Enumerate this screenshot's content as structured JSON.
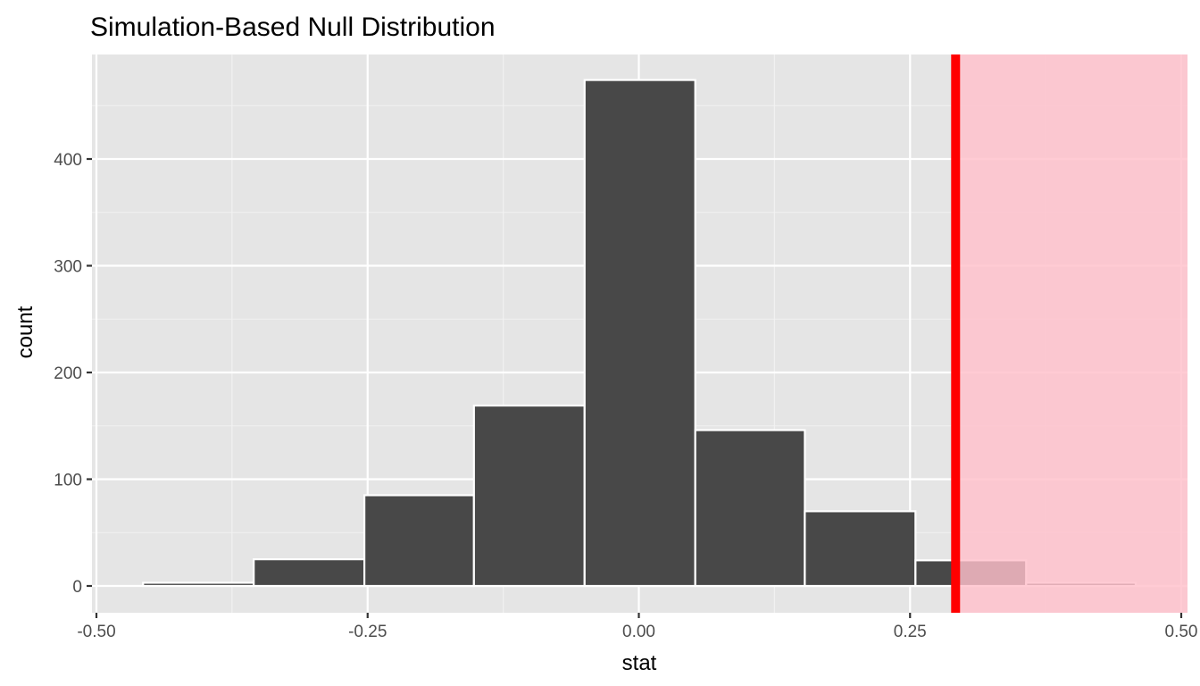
{
  "chart_data": {
    "type": "bar",
    "title": "Simulation-Based Null Distribution",
    "xlabel": "stat",
    "ylabel": "count",
    "xlim": [
      -0.5,
      0.5
    ],
    "ylim": [
      0,
      480
    ],
    "grid": true,
    "background": "#e5e5e5",
    "bar_color": "#484848",
    "bar_edge_color": "#ffffff",
    "x_ticks": [
      {
        "value": -0.5,
        "label": "-0.50"
      },
      {
        "value": -0.25,
        "label": "-0.25"
      },
      {
        "value": 0.0,
        "label": "0.00"
      },
      {
        "value": 0.25,
        "label": "0.25"
      },
      {
        "value": 0.5,
        "label": "0.50"
      }
    ],
    "y_ticks": [
      {
        "value": 0,
        "label": "0"
      },
      {
        "value": 100,
        "label": "100"
      },
      {
        "value": 200,
        "label": "200"
      },
      {
        "value": 300,
        "label": "300"
      },
      {
        "value": 400,
        "label": "400"
      }
    ],
    "bins": [
      {
        "x0": -0.457,
        "x1": -0.355,
        "count": 3
      },
      {
        "x0": -0.355,
        "x1": -0.253,
        "count": 25
      },
      {
        "x0": -0.253,
        "x1": -0.152,
        "count": 85
      },
      {
        "x0": -0.152,
        "x1": -0.05,
        "count": 169
      },
      {
        "x0": -0.05,
        "x1": 0.052,
        "count": 474
      },
      {
        "x0": 0.052,
        "x1": 0.153,
        "count": 146
      },
      {
        "x0": 0.153,
        "x1": 0.255,
        "count": 70
      },
      {
        "x0": 0.255,
        "x1": 0.357,
        "count": 24
      },
      {
        "x0": 0.357,
        "x1": 0.458,
        "count": 3
      }
    ],
    "observed_stat": {
      "value": 0.292,
      "color": "#ff0000"
    },
    "shade": {
      "from": 0.292,
      "to": 0.5,
      "direction": "right",
      "color": "#ffc0cb"
    }
  }
}
